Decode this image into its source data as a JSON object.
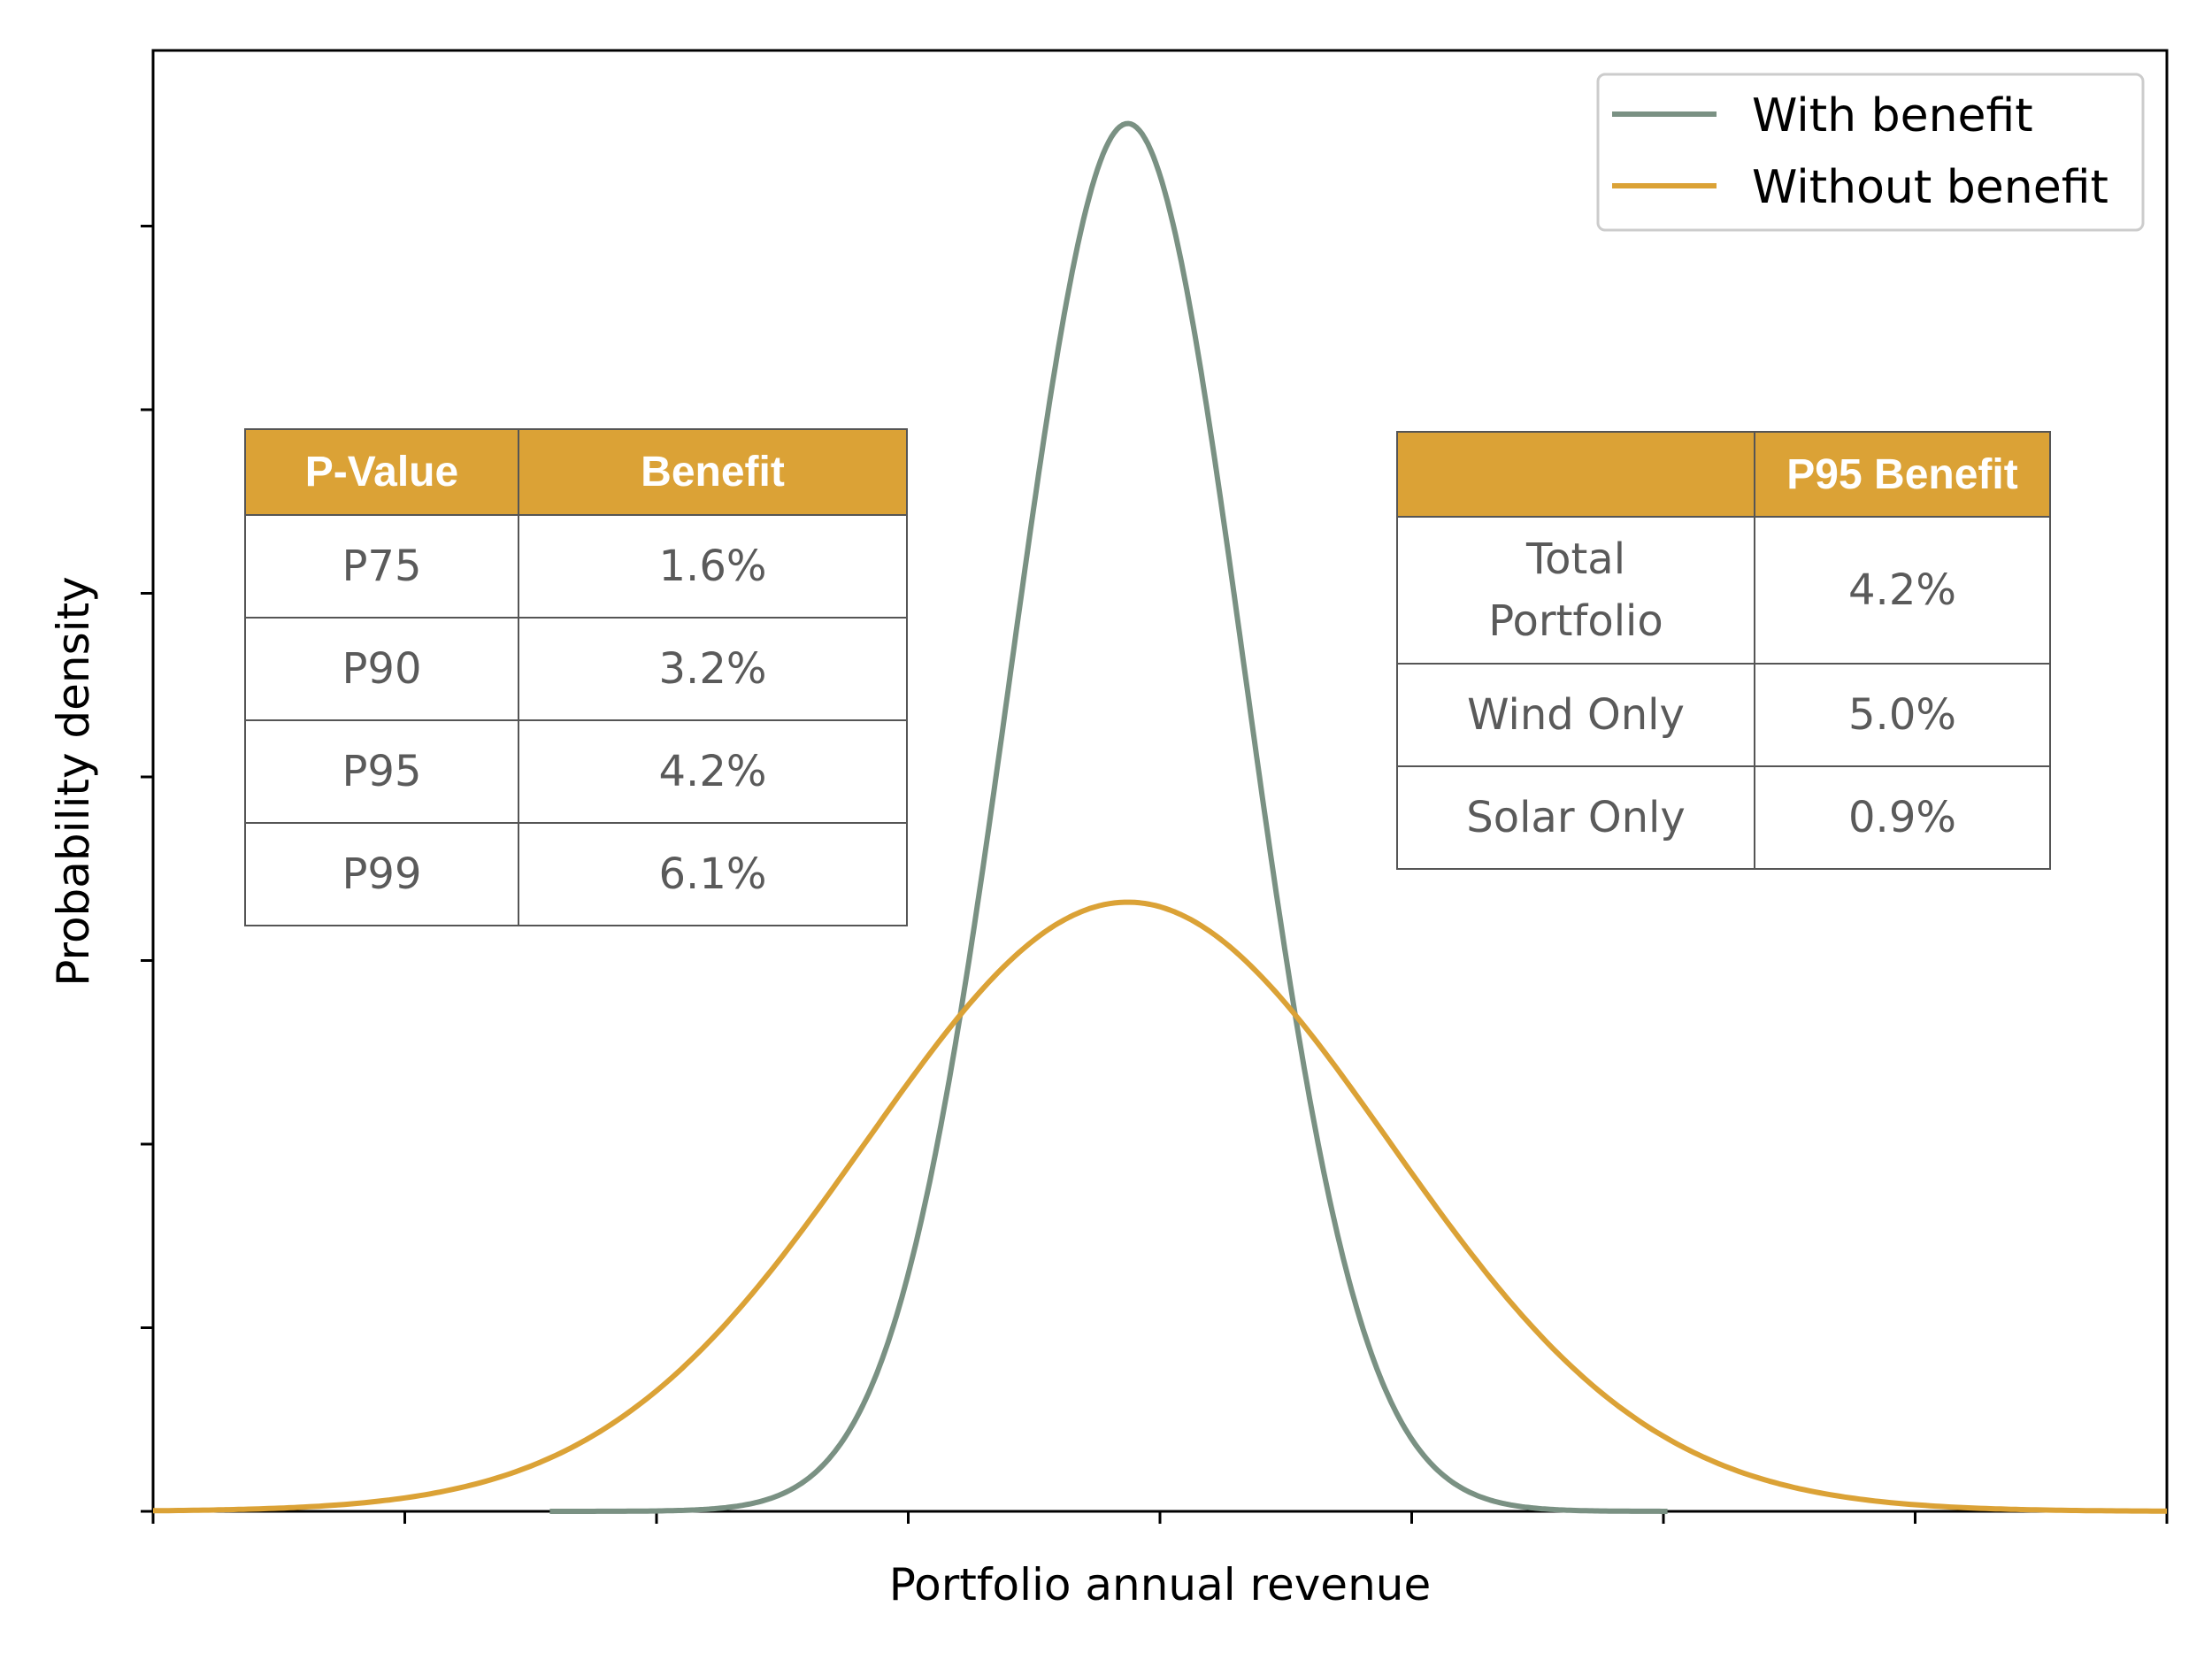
{
  "chart_data": {
    "type": "line",
    "xlabel": "Portfolio annual revenue",
    "ylabel": "Probability density",
    "x_tick_count": 9,
    "y_tick_count": 8,
    "legend": {
      "placement": "top-right",
      "entries": [
        "With benefit",
        "Without benefit"
      ]
    },
    "series": [
      {
        "name": "With benefit",
        "color": "#7A9183",
        "description_of_shape": "narrow bell curve, peak near 0.49 of x range",
        "peak_x": 0.484,
        "peak_y": 0.95,
        "sigma": 0.058,
        "x_range": [
          0.197,
          0.752
        ]
      },
      {
        "name": "Without benefit",
        "color": "#DBA236",
        "peak_x": 0.484,
        "peak_y": 0.417,
        "sigma": 0.13,
        "x_range": [
          0.0,
          1.0
        ]
      }
    ]
  },
  "tables": {
    "left": {
      "headers": [
        "P-Value",
        "Benefit"
      ],
      "rows": [
        [
          "P75",
          "1.6%"
        ],
        [
          "P90",
          "3.2%"
        ],
        [
          "P95",
          "4.2%"
        ],
        [
          "P99",
          "6.1%"
        ]
      ]
    },
    "right": {
      "headers": [
        "",
        "P95 Benefit"
      ],
      "rows": [
        [
          "Total Portfolio",
          "4.2%"
        ],
        [
          "Wind Only",
          "5.0%"
        ],
        [
          "Solar Only",
          "0.9%"
        ]
      ]
    }
  },
  "colors": {
    "header_fill": "#DBA236",
    "with_benefit": "#7A9183",
    "without_benefit": "#DBA236"
  }
}
